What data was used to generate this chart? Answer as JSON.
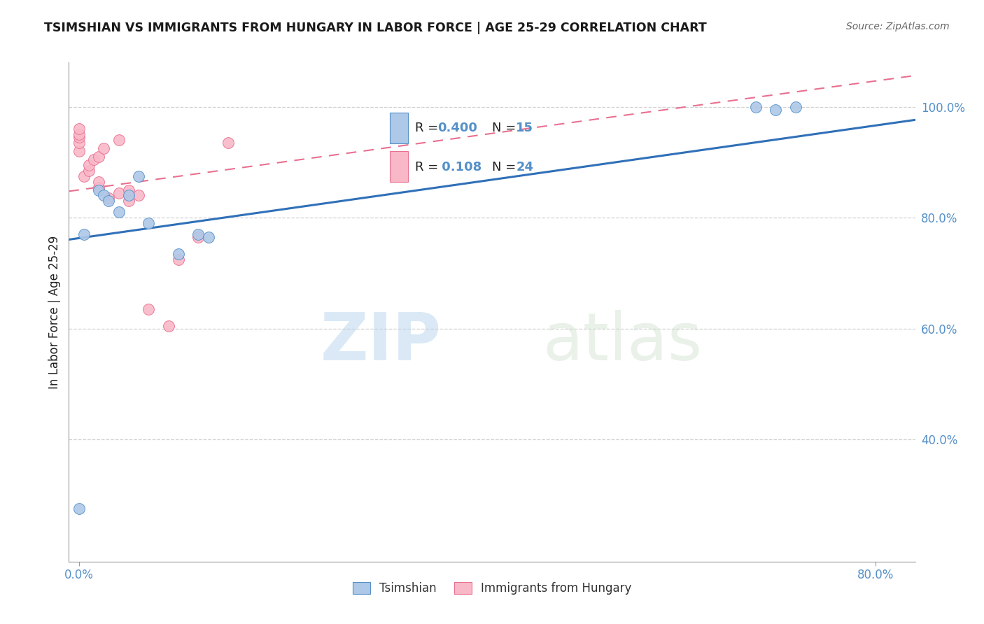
{
  "title": "TSIMSHIAN VS IMMIGRANTS FROM HUNGARY IN LABOR FORCE | AGE 25-29 CORRELATION CHART",
  "source": "Source: ZipAtlas.com",
  "ylabel": "In Labor Force | Age 25-29",
  "xlim": [
    -0.01,
    0.84
  ],
  "ylim": [
    0.18,
    1.08
  ],
  "blue_R": 0.4,
  "blue_N": 15,
  "pink_R": 0.108,
  "pink_N": 24,
  "blue_fill_color": "#aec8e8",
  "pink_fill_color": "#f9b8c8",
  "blue_edge_color": "#5590c8",
  "pink_edge_color": "#e87090",
  "blue_line_color": "#3070b8",
  "pink_line_color": "#e87090",
  "tick_color": "#5590c8",
  "blue_scatter_x": [
    0.0,
    0.005,
    0.02,
    0.025,
    0.03,
    0.04,
    0.05,
    0.06,
    0.07,
    0.1,
    0.12,
    0.13,
    0.68,
    0.7,
    0.72
  ],
  "blue_scatter_y": [
    0.275,
    0.77,
    0.85,
    0.84,
    0.83,
    0.81,
    0.84,
    0.875,
    0.79,
    0.735,
    0.77,
    0.765,
    1.0,
    0.995,
    1.0
  ],
  "pink_scatter_x": [
    0.0,
    0.0,
    0.0,
    0.0,
    0.0,
    0.005,
    0.01,
    0.01,
    0.015,
    0.02,
    0.02,
    0.02,
    0.025,
    0.03,
    0.04,
    0.04,
    0.05,
    0.05,
    0.06,
    0.07,
    0.09,
    0.1,
    0.12,
    0.15
  ],
  "pink_scatter_y": [
    0.92,
    0.935,
    0.945,
    0.95,
    0.96,
    0.875,
    0.885,
    0.895,
    0.905,
    0.855,
    0.865,
    0.91,
    0.925,
    0.835,
    0.845,
    0.94,
    0.83,
    0.85,
    0.84,
    0.635,
    0.605,
    0.725,
    0.765,
    0.935
  ],
  "grid_color": "#cccccc",
  "bg_color": "#ffffff",
  "legend_label_blue": "Tsimshian",
  "legend_label_pink": "Immigrants from Hungary",
  "watermark_zip": "ZIP",
  "watermark_atlas": "atlas",
  "y_ticks": [
    0.4,
    0.6,
    0.8,
    1.0
  ],
  "y_tick_labels": [
    "40.0%",
    "60.0%",
    "80.0%",
    "100.0%"
  ],
  "x_ticks": [
    0.0,
    0.8
  ],
  "x_tick_labels": [
    "0.0%",
    "80.0%"
  ]
}
